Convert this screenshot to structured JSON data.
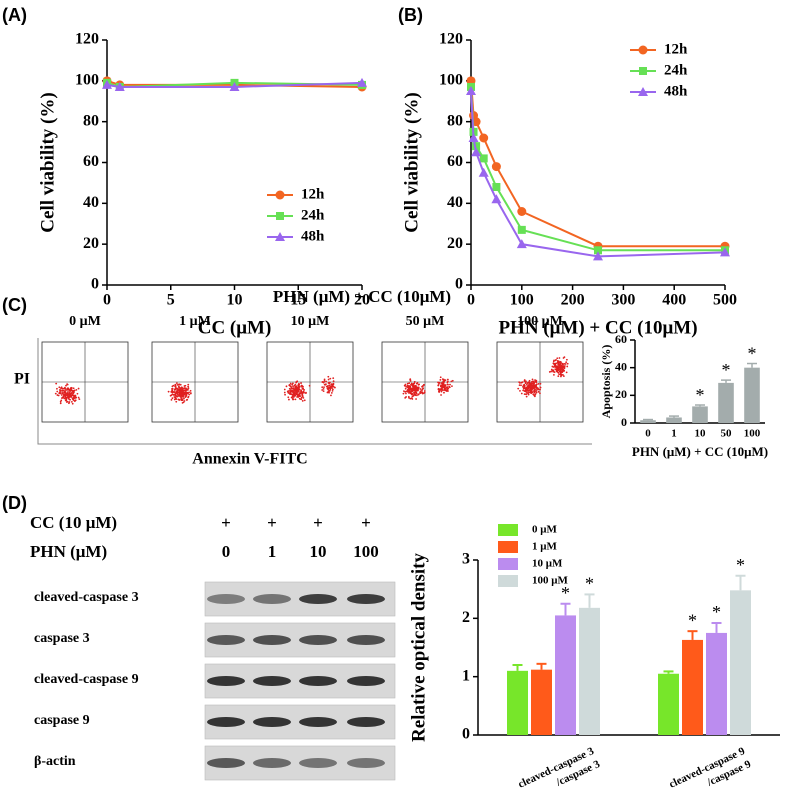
{
  "chart_data": [
    {
      "type": "line",
      "panel": "(A)",
      "ylabel": "Cell viability (%)",
      "xlabel": "CC (μM)",
      "x": [
        0,
        1,
        10,
        20
      ],
      "xlim": [
        0,
        20
      ],
      "xticks": [
        0,
        5,
        10,
        15,
        20
      ],
      "ylim": [
        0,
        120
      ],
      "yticks": [
        0,
        20,
        40,
        60,
        80,
        100,
        120
      ],
      "legend": "lower right",
      "series": [
        {
          "name": "12h",
          "color": "#f26522",
          "marker": "circle",
          "values": [
            100,
            98,
            98,
            97
          ]
        },
        {
          "name": "24h",
          "color": "#66e055",
          "marker": "square",
          "values": [
            99,
            97,
            99,
            98
          ]
        },
        {
          "name": "48h",
          "color": "#9966ee",
          "marker": "triangle",
          "values": [
            98,
            97,
            97,
            99
          ]
        }
      ]
    },
    {
      "type": "line",
      "panel": "(B)",
      "ylabel": "Cell viability (%)",
      "xlabel": "PHN (μM) + CC (10μM)",
      "x": [
        0,
        5,
        10,
        25,
        50,
        100,
        250,
        500
      ],
      "xlim": [
        0,
        500
      ],
      "xticks": [
        0,
        100,
        200,
        300,
        400,
        500
      ],
      "ylim": [
        0,
        120
      ],
      "yticks": [
        0,
        20,
        40,
        60,
        80,
        100,
        120
      ],
      "legend": "upper right",
      "series": [
        {
          "name": "12h",
          "color": "#f26522",
          "marker": "circle",
          "values": [
            100,
            83,
            80,
            72,
            58,
            36,
            19,
            19
          ]
        },
        {
          "name": "24h",
          "color": "#66e055",
          "marker": "square",
          "values": [
            97,
            75,
            68,
            62,
            48,
            27,
            17,
            17
          ]
        },
        {
          "name": "48h",
          "color": "#9966ee",
          "marker": "triangle",
          "values": [
            95,
            72,
            65,
            55,
            42,
            20,
            14,
            16
          ]
        }
      ]
    },
    {
      "type": "bar",
      "ylabel": "Apoptosis (%)",
      "xlabel": "PHN (μM) + CC (10μM)",
      "categories": [
        "0",
        "1",
        "10",
        "50",
        "100"
      ],
      "values": [
        2,
        4,
        12,
        29,
        40
      ],
      "errors": [
        0.5,
        1,
        1,
        2,
        3
      ],
      "significance": [
        null,
        null,
        "*",
        "*",
        "*"
      ],
      "color": "#a3acac",
      "ylim": [
        0,
        60
      ],
      "yticks": [
        0,
        20,
        40,
        60
      ]
    },
    {
      "type": "grouped-bar",
      "ylabel": "Relative optical density",
      "categories": [
        [
          "cleaved-caspase 3",
          "/caspase 3"
        ],
        [
          "cleaved-caspase 9",
          "/caspase 9"
        ]
      ],
      "ylim": [
        0,
        3
      ],
      "yticks": [
        0,
        1,
        2,
        3
      ],
      "legend": "upper left",
      "series": [
        {
          "name": "0 μM",
          "color": "#77e62a",
          "values": [
            1.1,
            1.05
          ],
          "errors": [
            0.1,
            0.04
          ],
          "significance": [
            null,
            null
          ]
        },
        {
          "name": "1 μM",
          "color": "#ff5a1a",
          "values": [
            1.12,
            1.63
          ],
          "errors": [
            0.1,
            0.15
          ],
          "significance": [
            null,
            "*"
          ]
        },
        {
          "name": "10 μM",
          "color": "#bb8cef",
          "values": [
            2.05,
            1.75
          ],
          "errors": [
            0.2,
            0.17
          ],
          "significance": [
            "*",
            "*"
          ]
        },
        {
          "name": "100 μM",
          "color": "#cfdada",
          "values": [
            2.18,
            2.48
          ],
          "errors": [
            0.23,
            0.25
          ],
          "significance": [
            "*",
            "*"
          ]
        }
      ]
    }
  ],
  "flow": {
    "panel": "(C)",
    "title": "PHN (μM) + CC (10μM)",
    "doses": [
      "0 μM",
      "1 μM",
      "10 μM",
      "50 μM",
      "100 μM"
    ],
    "ylabel": "PI",
    "xlabel": "Annexin V-FITC"
  },
  "blot": {
    "panel": "(D)",
    "treatments": [
      {
        "label": "CC (10 μM)",
        "lanes": [
          "+",
          "+",
          "+",
          "+"
        ]
      },
      {
        "label": "PHN (μM)",
        "lanes": [
          "0",
          "1",
          "10",
          "100"
        ]
      }
    ],
    "rows": [
      "cleaved-caspase 3",
      "caspase 3",
      "cleaved-caspase 9",
      "caspase 9",
      "β-actin"
    ]
  }
}
